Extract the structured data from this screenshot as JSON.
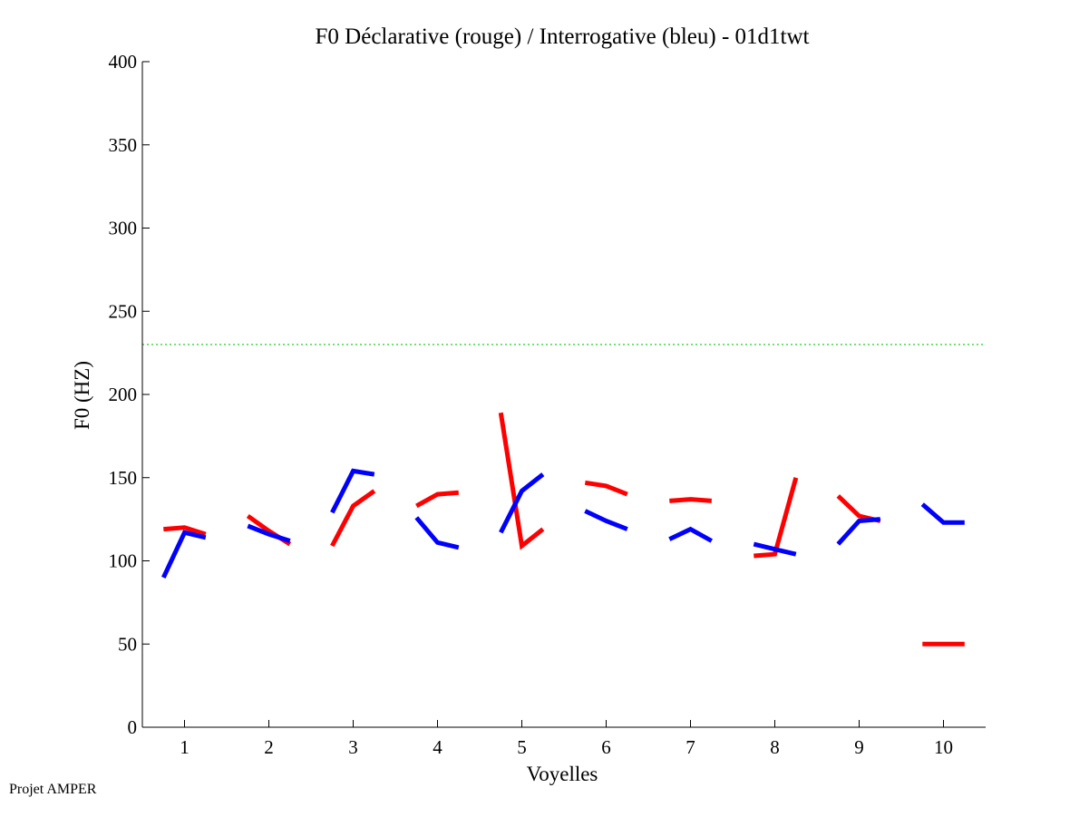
{
  "footer_text": "Projet AMPER",
  "chart_data": {
    "type": "line",
    "title": "F0 Déclarative (rouge) / Interrogative (bleu) - 01d1twt",
    "xlabel": "Voyelles",
    "ylabel": "F0 (HZ)",
    "xlim": [
      0.5,
      10.5
    ],
    "ylim": [
      0,
      400
    ],
    "xticks": [
      1,
      2,
      3,
      4,
      5,
      6,
      7,
      8,
      9,
      10
    ],
    "yticks": [
      0,
      50,
      100,
      150,
      200,
      250,
      300,
      350,
      400
    ],
    "grid": false,
    "reference_line": {
      "y": 230,
      "color": "#00cc00",
      "style": "dotted"
    },
    "series": [
      {
        "color": "#ff0000",
        "segments": [
          {
            "x": [
              0.75,
              1.0,
              1.25
            ],
            "y": [
              119,
              120,
              116
            ]
          },
          {
            "x": [
              1.75,
              2.0,
              2.25
            ],
            "y": [
              127,
              118,
              110
            ]
          },
          {
            "x": [
              2.75,
              3.0,
              3.25
            ],
            "y": [
              109,
              133,
              142
            ]
          },
          {
            "x": [
              3.75,
              4.0,
              4.25
            ],
            "y": [
              133,
              140,
              141
            ]
          },
          {
            "x": [
              4.75,
              5.0,
              5.25
            ],
            "y": [
              189,
              109,
              119
            ]
          },
          {
            "x": [
              5.75,
              6.0,
              6.25
            ],
            "y": [
              147,
              145,
              140
            ]
          },
          {
            "x": [
              6.75,
              7.0,
              7.25
            ],
            "y": [
              136,
              137,
              136
            ]
          },
          {
            "x": [
              7.75,
              8.0,
              8.25
            ],
            "y": [
              103,
              104,
              150
            ]
          },
          {
            "x": [
              8.75,
              9.0,
              9.25
            ],
            "y": [
              139,
              127,
              124
            ]
          },
          {
            "x": [
              9.75,
              10.0,
              10.25
            ],
            "y": [
              50,
              50,
              50
            ]
          }
        ]
      },
      {
        "color": "#0000ff",
        "segments": [
          {
            "x": [
              0.75,
              1.0,
              1.25
            ],
            "y": [
              90,
              117,
              114
            ]
          },
          {
            "x": [
              1.75,
              2.0,
              2.25
            ],
            "y": [
              121,
              116,
              112
            ]
          },
          {
            "x": [
              2.75,
              3.0,
              3.25
            ],
            "y": [
              129,
              154,
              152
            ]
          },
          {
            "x": [
              3.75,
              4.0,
              4.25
            ],
            "y": [
              126,
              111,
              108
            ]
          },
          {
            "x": [
              4.75,
              5.0,
              5.25
            ],
            "y": [
              117,
              142,
              152
            ]
          },
          {
            "x": [
              5.75,
              6.0,
              6.25
            ],
            "y": [
              130,
              124,
              119
            ]
          },
          {
            "x": [
              6.75,
              7.0,
              7.25
            ],
            "y": [
              113,
              119,
              112
            ]
          },
          {
            "x": [
              7.75,
              8.0,
              8.25
            ],
            "y": [
              110,
              107,
              104
            ]
          },
          {
            "x": [
              8.75,
              9.0,
              9.25
            ],
            "y": [
              110,
              124,
              125
            ]
          },
          {
            "x": [
              9.75,
              10.0,
              10.25
            ],
            "y": [
              134,
              123,
              123
            ]
          }
        ]
      }
    ]
  }
}
